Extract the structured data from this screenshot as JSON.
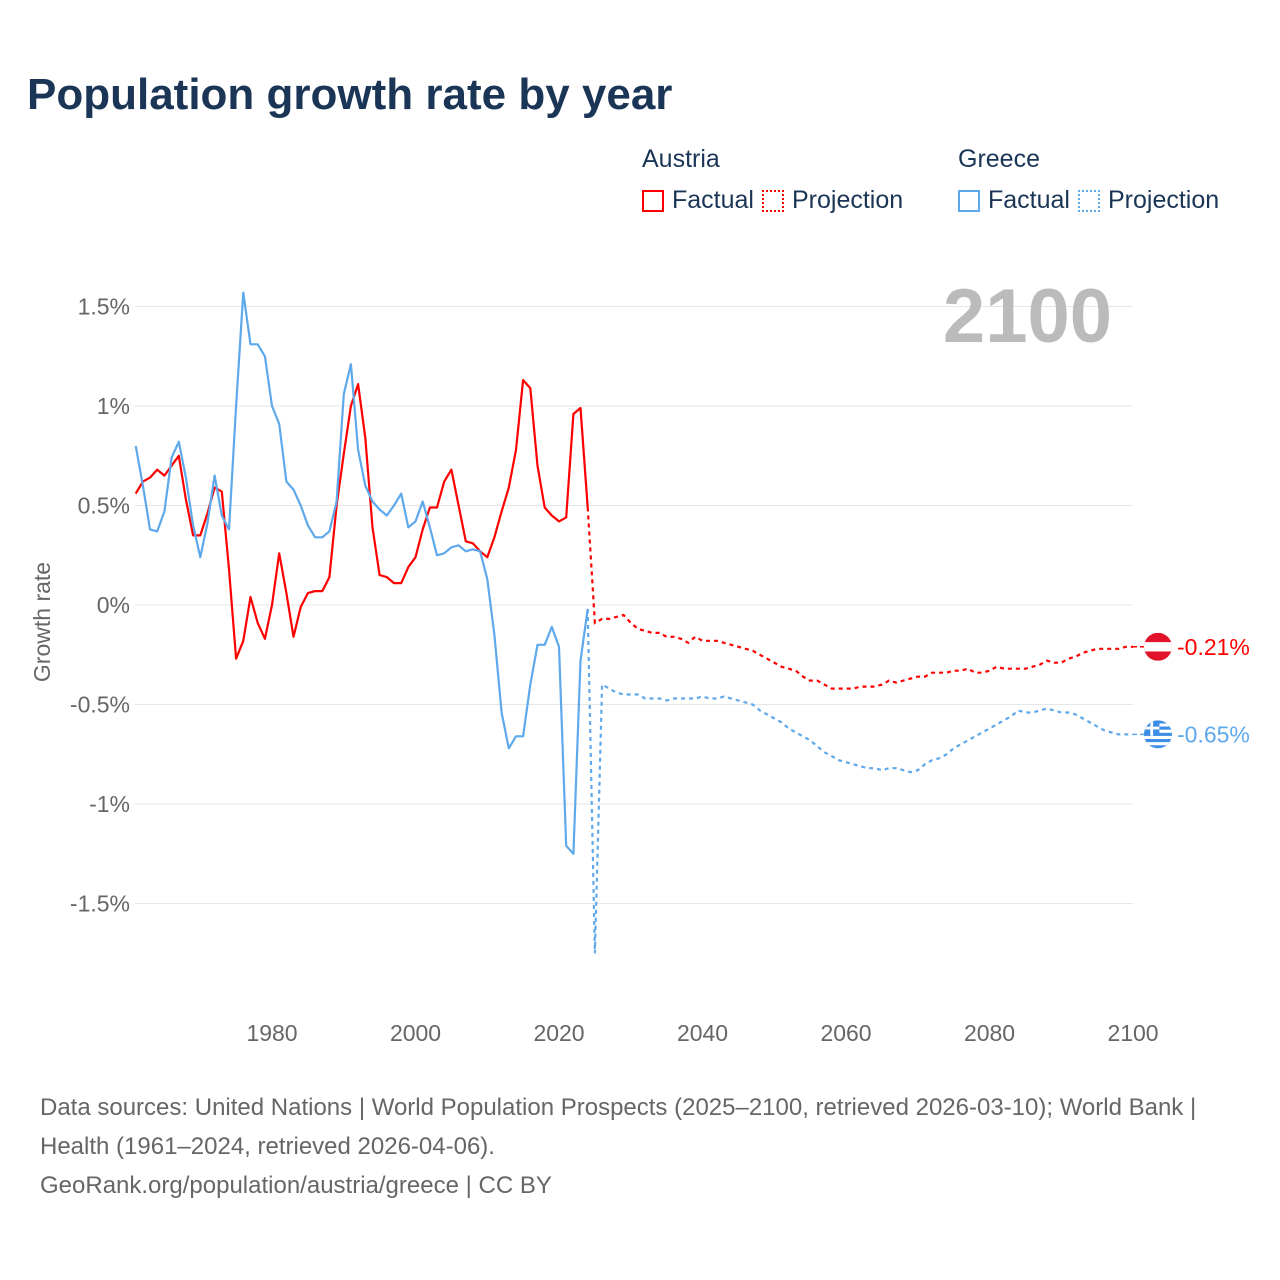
{
  "chart_data": {
    "type": "line",
    "title": "Population growth rate by year",
    "xlabel": "",
    "ylabel": "Growth rate",
    "xlim": [
      1961,
      2100
    ],
    "ylim": [
      -1.85,
      1.75
    ],
    "x_ticks": [
      1980,
      2000,
      2020,
      2040,
      2060,
      2080,
      2100
    ],
    "y_ticks": [
      1.5,
      1,
      0.5,
      0,
      -0.5,
      -1,
      -1.5
    ],
    "y_tick_labels": [
      "1.5%",
      "1%",
      "0.5%",
      "0%",
      "-0.5%",
      "-1%",
      "-1.5%"
    ],
    "grid": true,
    "year_watermark": "2100",
    "legend_placement": "top-right",
    "legend": {
      "groups": [
        {
          "name": "Austria",
          "factual": "Factual",
          "projection": "Projection"
        },
        {
          "name": "Greece",
          "factual": "Factual",
          "projection": "Projection"
        }
      ]
    },
    "series": [
      {
        "name": "Austria",
        "color": "#ff0000",
        "end_label": "-0.21%",
        "flag": "austria-flag",
        "factual": {
          "start_year": 1961,
          "values": [
            0.56,
            0.62,
            0.64,
            0.68,
            0.65,
            0.7,
            0.75,
            0.53,
            0.35,
            0.35,
            0.46,
            0.59,
            0.57,
            0.18,
            -0.27,
            -0.18,
            0.04,
            -0.09,
            -0.17,
            0.0,
            0.26,
            0.06,
            -0.16,
            -0.01,
            0.06,
            0.07,
            0.07,
            0.14,
            0.5,
            0.76,
            1.0,
            1.11,
            0.84,
            0.39,
            0.15,
            0.14,
            0.11,
            0.11,
            0.19,
            0.24,
            0.38,
            0.49,
            0.49,
            0.62,
            0.68,
            0.5,
            0.32,
            0.31,
            0.27,
            0.24,
            0.34,
            0.47,
            0.59,
            0.78,
            1.13,
            1.09,
            0.7,
            0.49,
            0.45,
            0.42,
            0.44,
            0.96,
            0.99,
            0.49
          ]
        },
        "projection": {
          "start_year": 2024,
          "values": [
            0.49,
            -0.09,
            -0.07,
            -0.07,
            -0.06,
            -0.05,
            -0.09,
            -0.12,
            -0.13,
            -0.14,
            -0.14,
            -0.16,
            -0.16,
            -0.17,
            -0.19,
            -0.16,
            -0.18,
            -0.18,
            -0.18,
            -0.19,
            -0.2,
            -0.21,
            -0.22,
            -0.23,
            -0.25,
            -0.27,
            -0.29,
            -0.31,
            -0.32,
            -0.33,
            -0.36,
            -0.38,
            -0.38,
            -0.4,
            -0.42,
            -0.42,
            -0.42,
            -0.42,
            -0.41,
            -0.41,
            -0.41,
            -0.4,
            -0.38,
            -0.39,
            -0.38,
            -0.37,
            -0.36,
            -0.36,
            -0.34,
            -0.34,
            -0.34,
            -0.33,
            -0.33,
            -0.32,
            -0.34,
            -0.34,
            -0.33,
            -0.31,
            -0.32,
            -0.32,
            -0.32,
            -0.32,
            -0.31,
            -0.3,
            -0.28,
            -0.29,
            -0.29,
            -0.27,
            -0.26,
            -0.24,
            -0.23,
            -0.22,
            -0.22,
            -0.22,
            -0.22,
            -0.21,
            -0.21
          ]
        }
      },
      {
        "name": "Greece",
        "color": "#5ea8ec",
        "end_label": "-0.65%",
        "flag": "greece-flag",
        "factual": {
          "start_year": 1961,
          "values": [
            0.8,
            0.6,
            0.38,
            0.37,
            0.47,
            0.74,
            0.82,
            0.64,
            0.4,
            0.24,
            0.41,
            0.65,
            0.45,
            0.38,
            1.0,
            1.57,
            1.31,
            1.31,
            1.25,
            1.0,
            0.91,
            0.62,
            0.58,
            0.5,
            0.4,
            0.34,
            0.34,
            0.37,
            0.52,
            1.06,
            1.21,
            0.78,
            0.6,
            0.52,
            0.48,
            0.45,
            0.5,
            0.56,
            0.39,
            0.42,
            0.52,
            0.39,
            0.25,
            0.26,
            0.29,
            0.3,
            0.27,
            0.28,
            0.27,
            0.13,
            -0.15,
            -0.54,
            -0.72,
            -0.66,
            -0.66,
            -0.4,
            -0.2,
            -0.2,
            -0.11,
            -0.21,
            -1.21,
            -1.25,
            -0.28,
            -0.02
          ]
        },
        "projection": {
          "start_year": 2024,
          "values": [
            -0.02,
            -1.75,
            -0.4,
            -0.42,
            -0.44,
            -0.45,
            -0.45,
            -0.45,
            -0.47,
            -0.47,
            -0.47,
            -0.48,
            -0.47,
            -0.47,
            -0.47,
            -0.47,
            -0.46,
            -0.47,
            -0.47,
            -0.46,
            -0.47,
            -0.48,
            -0.49,
            -0.5,
            -0.53,
            -0.55,
            -0.57,
            -0.59,
            -0.62,
            -0.64,
            -0.66,
            -0.68,
            -0.71,
            -0.74,
            -0.76,
            -0.78,
            -0.79,
            -0.8,
            -0.81,
            -0.82,
            -0.82,
            -0.83,
            -0.82,
            -0.82,
            -0.83,
            -0.84,
            -0.83,
            -0.8,
            -0.78,
            -0.77,
            -0.75,
            -0.72,
            -0.7,
            -0.68,
            -0.66,
            -0.64,
            -0.62,
            -0.6,
            -0.58,
            -0.56,
            -0.53,
            -0.54,
            -0.54,
            -0.53,
            -0.52,
            -0.53,
            -0.54,
            -0.54,
            -0.55,
            -0.57,
            -0.59,
            -0.61,
            -0.63,
            -0.64,
            -0.65,
            -0.65,
            -0.65
          ]
        }
      }
    ]
  },
  "footer": {
    "sources": "Data sources: United Nations | World Population Prospects (2025–2100, retrieved 2026-03-10); World Bank | Health (1961–2024, retrieved 2026-04-06).",
    "credit": "GeoRank.org/population/austria/greece | CC BY"
  }
}
